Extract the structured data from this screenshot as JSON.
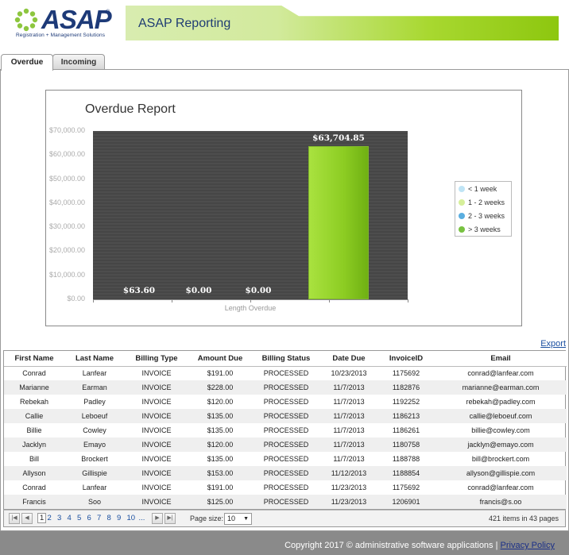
{
  "header": {
    "logo_text": "ASAP",
    "logo_registered": "®",
    "logo_tagline": "Registration + Management Solutions",
    "title": "ASAP Reporting"
  },
  "tabs": [
    {
      "label": "Overdue",
      "active": true
    },
    {
      "label": "Incoming",
      "active": false
    }
  ],
  "chart_data": {
    "type": "bar",
    "title": "Overdue Report",
    "xlabel": "Length Overdue",
    "ylabel": "",
    "categories": [
      "< 1 week",
      "1 - 2 weeks",
      "2 - 3 weeks",
      "> 3 weeks"
    ],
    "values": [
      63.6,
      0.0,
      0.0,
      63704.85
    ],
    "value_labels": [
      "$63.60",
      "$0.00",
      "$0.00",
      "$63,704.85"
    ],
    "ylim": [
      0,
      70000
    ],
    "yticks": [
      0,
      10000,
      20000,
      30000,
      40000,
      50000,
      60000,
      70000
    ],
    "ytick_labels": [
      "$0.00",
      "$10,000.00",
      "$20,000.00",
      "$30,000.00",
      "$40,000.00",
      "$50,000.00",
      "$60,000.00",
      "$70,000.00"
    ],
    "legend": {
      "placement": "right",
      "entries": [
        "< 1 week",
        "1 - 2 weeks",
        "2 - 3 weeks",
        "> 3 weeks"
      ],
      "colors": [
        "#bfe4f5",
        "#d6ef9a",
        "#5aaee0",
        "#78c241"
      ]
    },
    "bar_color": "#8ccc22",
    "grid": true
  },
  "export_label": "Export",
  "table": {
    "columns": [
      "First Name",
      "Last Name",
      "Billing Type",
      "Amount Due",
      "Billing Status",
      "Date Due",
      "InvoiceID",
      "Email"
    ],
    "rows": [
      [
        "Conrad",
        "Lanfear",
        "INVOICE",
        "$191.00",
        "PROCESSED",
        "10/23/2013",
        "1175692",
        "conrad@lanfear.com"
      ],
      [
        "Marianne",
        "Earman",
        "INVOICE",
        "$228.00",
        "PROCESSED",
        "11/7/2013",
        "1182876",
        "marianne@earman.com"
      ],
      [
        "Rebekah",
        "Padley",
        "INVOICE",
        "$120.00",
        "PROCESSED",
        "11/7/2013",
        "1192252",
        "rebekah@padley.com"
      ],
      [
        "Callie",
        "Leboeuf",
        "INVOICE",
        "$135.00",
        "PROCESSED",
        "11/7/2013",
        "1186213",
        "callie@leboeuf.com"
      ],
      [
        "Billie",
        "Cowley",
        "INVOICE",
        "$135.00",
        "PROCESSED",
        "11/7/2013",
        "1186261",
        "billie@cowley.com"
      ],
      [
        "Jacklyn",
        "Emayo",
        "INVOICE",
        "$120.00",
        "PROCESSED",
        "11/7/2013",
        "1180758",
        "jacklyn@emayo.com"
      ],
      [
        "Bill",
        "Brockert",
        "INVOICE",
        "$135.00",
        "PROCESSED",
        "11/7/2013",
        "1188788",
        "bill@brockert.com"
      ],
      [
        "Allyson",
        "Gillispie",
        "INVOICE",
        "$153.00",
        "PROCESSED",
        "11/12/2013",
        "1188854",
        "allyson@gillispie.com"
      ],
      [
        "Conrad",
        "Lanfear",
        "INVOICE",
        "$191.00",
        "PROCESSED",
        "11/23/2013",
        "1175692",
        "conrad@lanfear.com"
      ],
      [
        "Francis",
        "Soo",
        "INVOICE",
        "$125.00",
        "PROCESSED",
        "11/23/2013",
        "1206901",
        "francis@s.oo"
      ]
    ]
  },
  "pager": {
    "pages": [
      "1",
      "2",
      "3",
      "4",
      "5",
      "6",
      "7",
      "8",
      "9",
      "10",
      "..."
    ],
    "current": "1",
    "page_size_label": "Page size:",
    "page_size": "10",
    "info": "421 items in 43 pages",
    "first_icon": "first-page-icon",
    "prev_icon": "prev-page-icon",
    "next_icon": "next-page-icon",
    "last_icon": "last-page-icon"
  },
  "footer": {
    "copyright": "Copyright 2017 © administrative software applications |",
    "privacy_label": "Privacy Policy"
  }
}
